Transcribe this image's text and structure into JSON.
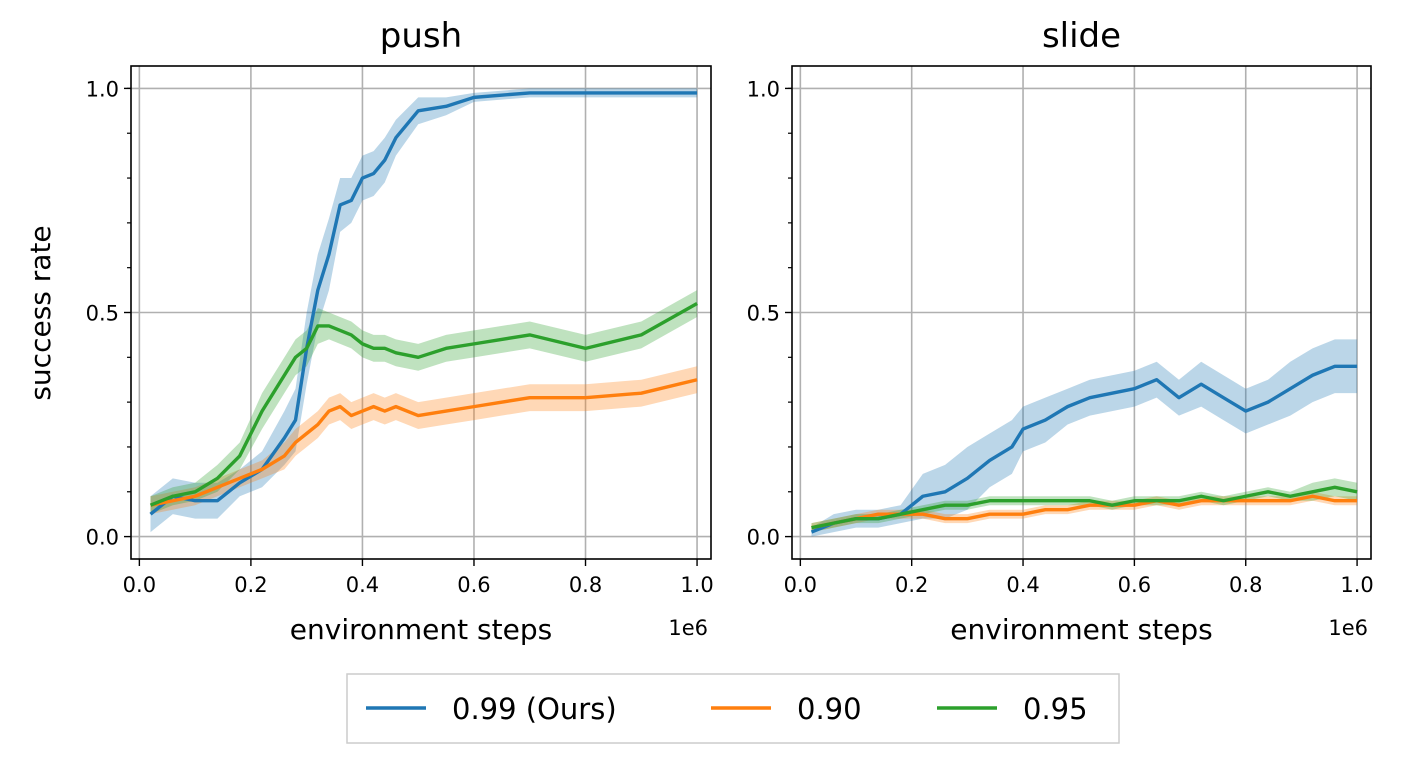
{
  "colors": {
    "ours": "#1f77b4",
    "g090": "#ff7f0e",
    "g095": "#2ca02c",
    "grid": "#b0b0b0"
  },
  "shared": {
    "ylabel": "success rate",
    "xlabel": "environment steps",
    "offset_label": "1e6",
    "xticks": [
      "0.0",
      "0.2",
      "0.4",
      "0.6",
      "0.8",
      "1.0"
    ],
    "yticks": [
      "0.0",
      "0.5",
      "1.0"
    ]
  },
  "legend": {
    "items": [
      {
        "label": "0.99 (Ours)",
        "color": "#1f77b4"
      },
      {
        "label": "0.90",
        "color": "#ff7f0e"
      },
      {
        "label": "0.95",
        "color": "#2ca02c"
      }
    ]
  },
  "chart_data": [
    {
      "type": "line",
      "title": "push",
      "xlabel": "environment steps",
      "ylabel": "success rate",
      "xlim": [
        -0.015,
        1.025
      ],
      "ylim": [
        -0.05,
        1.05
      ],
      "grid": true,
      "x": [
        0.02,
        0.06,
        0.1,
        0.14,
        0.18,
        0.22,
        0.26,
        0.28,
        0.3,
        0.32,
        0.34,
        0.36,
        0.38,
        0.4,
        0.42,
        0.44,
        0.46,
        0.5,
        0.55,
        0.6,
        0.7,
        0.8,
        0.9,
        1.0
      ],
      "series": [
        {
          "name": "0.99 (Ours)",
          "color": "#1f77b4",
          "values": [
            0.05,
            0.09,
            0.08,
            0.08,
            0.12,
            0.15,
            0.22,
            0.26,
            0.42,
            0.55,
            0.63,
            0.74,
            0.75,
            0.8,
            0.81,
            0.84,
            0.89,
            0.95,
            0.96,
            0.98,
            0.99,
            0.99,
            0.99,
            0.99
          ],
          "band": [
            0.04,
            0.04,
            0.04,
            0.04,
            0.03,
            0.04,
            0.06,
            0.07,
            0.08,
            0.08,
            0.08,
            0.06,
            0.05,
            0.05,
            0.05,
            0.05,
            0.04,
            0.03,
            0.02,
            0.01,
            0.01,
            0.01,
            0.01,
            0.01
          ]
        },
        {
          "name": "0.90",
          "color": "#ff7f0e",
          "values": [
            0.07,
            0.08,
            0.09,
            0.11,
            0.13,
            0.15,
            0.18,
            0.21,
            0.23,
            0.25,
            0.28,
            0.29,
            0.27,
            0.28,
            0.29,
            0.28,
            0.29,
            0.27,
            0.28,
            0.29,
            0.31,
            0.31,
            0.32,
            0.35
          ],
          "band": [
            0.02,
            0.02,
            0.02,
            0.02,
            0.02,
            0.02,
            0.03,
            0.03,
            0.03,
            0.03,
            0.03,
            0.03,
            0.03,
            0.03,
            0.03,
            0.03,
            0.03,
            0.03,
            0.03,
            0.03,
            0.03,
            0.03,
            0.03,
            0.03
          ]
        },
        {
          "name": "0.95",
          "color": "#2ca02c",
          "values": [
            0.07,
            0.09,
            0.1,
            0.13,
            0.18,
            0.28,
            0.36,
            0.4,
            0.42,
            0.47,
            0.47,
            0.46,
            0.45,
            0.43,
            0.42,
            0.42,
            0.41,
            0.4,
            0.42,
            0.43,
            0.45,
            0.42,
            0.45,
            0.52
          ],
          "band": [
            0.02,
            0.02,
            0.02,
            0.03,
            0.03,
            0.04,
            0.04,
            0.04,
            0.04,
            0.04,
            0.03,
            0.03,
            0.03,
            0.03,
            0.03,
            0.03,
            0.03,
            0.03,
            0.03,
            0.03,
            0.03,
            0.03,
            0.03,
            0.03
          ]
        }
      ]
    },
    {
      "type": "line",
      "title": "slide",
      "xlabel": "environment steps",
      "ylabel": "",
      "xlim": [
        -0.015,
        1.025
      ],
      "ylim": [
        -0.05,
        1.05
      ],
      "grid": true,
      "x": [
        0.02,
        0.06,
        0.1,
        0.14,
        0.18,
        0.22,
        0.26,
        0.3,
        0.34,
        0.38,
        0.4,
        0.44,
        0.48,
        0.52,
        0.56,
        0.6,
        0.64,
        0.68,
        0.72,
        0.76,
        0.8,
        0.84,
        0.88,
        0.92,
        0.96,
        1.0
      ],
      "series": [
        {
          "name": "0.99 (Ours)",
          "color": "#1f77b4",
          "values": [
            0.01,
            0.03,
            0.04,
            0.04,
            0.05,
            0.09,
            0.1,
            0.13,
            0.17,
            0.2,
            0.24,
            0.26,
            0.29,
            0.31,
            0.32,
            0.33,
            0.35,
            0.31,
            0.34,
            0.31,
            0.28,
            0.3,
            0.33,
            0.36,
            0.38,
            0.38
          ],
          "band": [
            0.01,
            0.02,
            0.02,
            0.02,
            0.02,
            0.05,
            0.06,
            0.07,
            0.06,
            0.06,
            0.05,
            0.05,
            0.04,
            0.04,
            0.04,
            0.04,
            0.04,
            0.04,
            0.05,
            0.05,
            0.05,
            0.05,
            0.06,
            0.06,
            0.06,
            0.06
          ]
        },
        {
          "name": "0.90",
          "color": "#ff7f0e",
          "values": [
            0.02,
            0.03,
            0.04,
            0.05,
            0.05,
            0.05,
            0.04,
            0.04,
            0.05,
            0.05,
            0.05,
            0.06,
            0.06,
            0.07,
            0.07,
            0.07,
            0.08,
            0.07,
            0.08,
            0.08,
            0.08,
            0.08,
            0.08,
            0.09,
            0.08,
            0.08
          ],
          "band": [
            0.01,
            0.01,
            0.01,
            0.01,
            0.01,
            0.01,
            0.01,
            0.01,
            0.01,
            0.01,
            0.01,
            0.01,
            0.01,
            0.01,
            0.01,
            0.01,
            0.01,
            0.01,
            0.01,
            0.01,
            0.01,
            0.01,
            0.01,
            0.01,
            0.01,
            0.01
          ]
        },
        {
          "name": "0.95",
          "color": "#2ca02c",
          "values": [
            0.02,
            0.03,
            0.04,
            0.04,
            0.05,
            0.06,
            0.07,
            0.07,
            0.08,
            0.08,
            0.08,
            0.08,
            0.08,
            0.08,
            0.07,
            0.08,
            0.08,
            0.08,
            0.09,
            0.08,
            0.09,
            0.1,
            0.09,
            0.1,
            0.11,
            0.1
          ],
          "band": [
            0.01,
            0.01,
            0.01,
            0.01,
            0.01,
            0.01,
            0.01,
            0.01,
            0.01,
            0.01,
            0.01,
            0.01,
            0.01,
            0.01,
            0.01,
            0.01,
            0.01,
            0.01,
            0.01,
            0.01,
            0.01,
            0.01,
            0.01,
            0.02,
            0.02,
            0.02
          ]
        }
      ]
    }
  ]
}
